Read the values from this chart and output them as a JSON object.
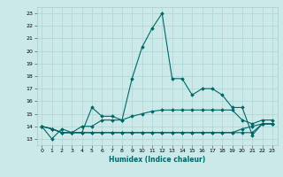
{
  "title": "",
  "xlabel": "Humidex (Indice chaleur)",
  "ylabel": "",
  "background_color": "#cce9e9",
  "grid_color": "#aad4d4",
  "line_color": "#006666",
  "xlim": [
    -0.5,
    23.5
  ],
  "ylim": [
    12.5,
    23.5
  ],
  "yticks": [
    13,
    14,
    15,
    16,
    17,
    18,
    19,
    20,
    21,
    22,
    23
  ],
  "xticks": [
    0,
    1,
    2,
    3,
    4,
    5,
    6,
    7,
    8,
    9,
    10,
    11,
    12,
    13,
    14,
    15,
    16,
    17,
    18,
    19,
    20,
    21,
    22,
    23
  ],
  "series": [
    [
      14.0,
      13.0,
      13.8,
      13.5,
      13.5,
      15.5,
      14.8,
      14.8,
      14.5,
      17.8,
      20.3,
      21.8,
      23.0,
      17.8,
      17.8,
      16.5,
      17.0,
      17.0,
      16.5,
      15.5,
      15.5,
      13.3,
      14.2,
      14.2
    ],
    [
      14.0,
      13.8,
      13.5,
      13.5,
      14.0,
      14.0,
      14.5,
      14.5,
      14.5,
      14.8,
      15.0,
      15.2,
      15.3,
      15.3,
      15.3,
      15.3,
      15.3,
      15.3,
      15.3,
      15.3,
      14.5,
      14.2,
      14.5,
      14.5
    ],
    [
      14.0,
      13.8,
      13.5,
      13.5,
      13.5,
      13.5,
      13.5,
      13.5,
      13.5,
      13.5,
      13.5,
      13.5,
      13.5,
      13.5,
      13.5,
      13.5,
      13.5,
      13.5,
      13.5,
      13.5,
      13.8,
      14.0,
      14.2,
      14.2
    ],
    [
      14.0,
      13.8,
      13.5,
      13.5,
      13.5,
      13.5,
      13.5,
      13.5,
      13.5,
      13.5,
      13.5,
      13.5,
      13.5,
      13.5,
      13.5,
      13.5,
      13.5,
      13.5,
      13.5,
      13.5,
      13.5,
      13.5,
      14.2,
      14.2
    ]
  ]
}
